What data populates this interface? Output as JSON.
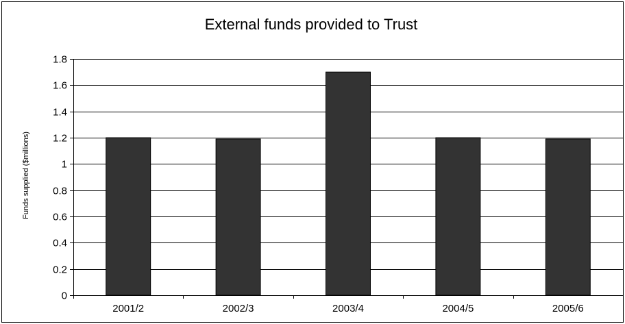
{
  "chart_data": {
    "type": "bar",
    "title": "External funds provided to Trust",
    "xlabel": "",
    "ylabel": "Funds supplied ($millions)",
    "categories": [
      "2001/2",
      "2002/3",
      "2003/4",
      "2004/5",
      "2005/6"
    ],
    "values": [
      1.2,
      1.19,
      1.7,
      1.2,
      1.19
    ],
    "ylim": [
      0,
      1.8
    ],
    "yticks": [
      "0",
      "0.2",
      "0.4",
      "0.6",
      "0.8",
      "1",
      "1.2",
      "1.4",
      "1.6",
      "1.8"
    ],
    "grid": "horizontal",
    "legend": "none",
    "colors": {
      "bar": "#333333",
      "grid": "#000000",
      "background": "#ffffff"
    }
  }
}
